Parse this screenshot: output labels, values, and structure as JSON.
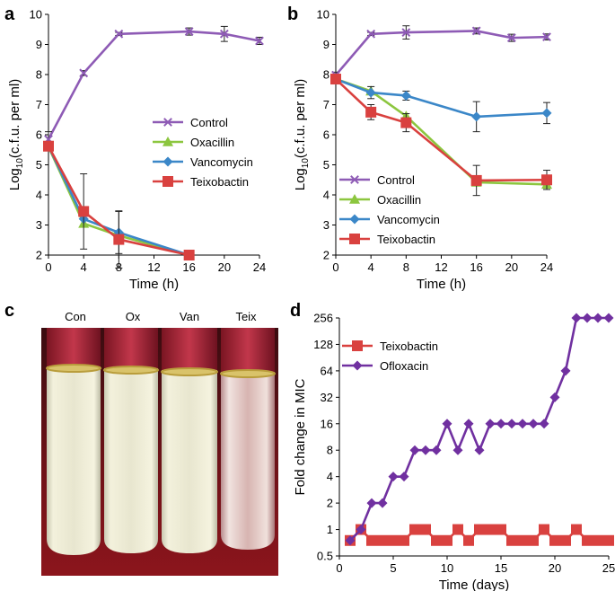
{
  "panel_labels": {
    "a": "a",
    "b": "b",
    "c": "c",
    "d": "d"
  },
  "colors": {
    "Control": "#8E5BB5",
    "Oxacillin": "#8CC63F",
    "Vancomycin": "#3B87C8",
    "Teixobactin": "#D9413F",
    "Ofloxacin": "#7030A0",
    "axis": "#000000"
  },
  "chart_data": [
    {
      "panel": "a",
      "type": "line",
      "xlabel": "Time (h)",
      "ylabel": "Log10(c.f.u. per ml)",
      "ylabel_main": "Log",
      "ylabel_sub": "10",
      "ylabel_rest": "(c.f.u. per ml)",
      "xlim": [
        0,
        24
      ],
      "ylim": [
        2,
        10
      ],
      "xticks": [
        "0",
        "4",
        "8",
        "12",
        "16",
        "20",
        "24"
      ],
      "yticks": [
        "2",
        "3",
        "4",
        "5",
        "6",
        "7",
        "8",
        "9",
        "10"
      ],
      "grid": false,
      "legend": "right",
      "series": [
        {
          "name": "Control",
          "marker": "x",
          "x": [
            0,
            4,
            8,
            16,
            20,
            24
          ],
          "y": [
            5.85,
            8.05,
            9.35,
            9.43,
            9.35,
            9.12
          ],
          "err": [
            0.25,
            0.08,
            0.05,
            0.12,
            0.25,
            0.12
          ]
        },
        {
          "name": "Oxacillin",
          "marker": "triangle",
          "x": [
            0,
            4,
            8,
            16
          ],
          "y": [
            5.6,
            3.05,
            2.65,
            2.0
          ],
          "err": [
            0,
            0,
            0,
            0
          ]
        },
        {
          "name": "Vancomycin",
          "marker": "diamond",
          "x": [
            0,
            4,
            8,
            16
          ],
          "y": [
            5.62,
            3.2,
            2.75,
            2.0
          ],
          "err": [
            0,
            0,
            0.7,
            0
          ]
        },
        {
          "name": "Teixobactin",
          "marker": "square",
          "x": [
            0,
            4,
            8,
            16
          ],
          "y": [
            5.62,
            3.45,
            2.52,
            2.0
          ],
          "err": [
            0,
            1.25,
            0.95,
            0
          ]
        }
      ]
    },
    {
      "panel": "b",
      "type": "line",
      "xlabel": "Time (h)",
      "ylabel": "Log10(c.f.u. per ml)",
      "ylabel_main": "Log",
      "ylabel_sub": "10",
      "ylabel_rest": "(c.f.u. per ml)",
      "xlim": [
        0,
        24
      ],
      "ylim": [
        2,
        10
      ],
      "xticks": [
        "0",
        "4",
        "8",
        "12",
        "16",
        "20",
        "24"
      ],
      "yticks": [
        "2",
        "3",
        "4",
        "5",
        "6",
        "7",
        "8",
        "9",
        "10"
      ],
      "grid": false,
      "legend": "bottom-left",
      "series": [
        {
          "name": "Control",
          "marker": "x",
          "x": [
            0,
            4,
            8,
            16,
            20,
            24
          ],
          "y": [
            7.98,
            9.35,
            9.4,
            9.45,
            9.22,
            9.25
          ],
          "err": [
            0.1,
            0.05,
            0.22,
            0.1,
            0.12,
            0.1
          ]
        },
        {
          "name": "Oxacillin",
          "marker": "triangle",
          "x": [
            0,
            4,
            8,
            16,
            24
          ],
          "y": [
            7.85,
            7.45,
            6.62,
            4.42,
            4.35
          ],
          "err": [
            0,
            0,
            0,
            0,
            0
          ]
        },
        {
          "name": "Vancomycin",
          "marker": "diamond",
          "x": [
            0,
            4,
            8,
            16,
            24
          ],
          "y": [
            7.85,
            7.4,
            7.3,
            6.6,
            6.72
          ],
          "err": [
            0.1,
            0.2,
            0.15,
            0.5,
            0.35
          ]
        },
        {
          "name": "Teixobactin",
          "marker": "square",
          "x": [
            0,
            4,
            8,
            16,
            24
          ],
          "y": [
            7.85,
            6.75,
            6.4,
            4.48,
            4.5
          ],
          "err": [
            0,
            0.25,
            0.3,
            0.5,
            0.32
          ]
        }
      ]
    },
    {
      "panel": "d",
      "type": "line",
      "xlabel": "Time (days)",
      "ylabel": "Fold change in MIC",
      "xlim": [
        0,
        25
      ],
      "ylim": [
        0.5,
        256
      ],
      "yscale": "log2",
      "xticks": [
        "0",
        "5",
        "10",
        "15",
        "20",
        "25"
      ],
      "yticks": [
        "0.5",
        "1",
        "2",
        "4",
        "8",
        "16",
        "32",
        "64",
        "128",
        "256"
      ],
      "grid": false,
      "legend": "top-left",
      "series": [
        {
          "name": "Teixobactin",
          "marker": "square",
          "x": [
            1,
            2,
            3,
            4,
            5,
            6,
            7,
            8,
            9,
            10,
            11,
            12,
            13,
            14,
            15,
            16,
            17,
            18,
            19,
            20,
            21,
            22,
            23,
            24,
            25
          ],
          "y": [
            0.75,
            1,
            0.75,
            0.75,
            0.75,
            0.75,
            1,
            1,
            0.75,
            0.75,
            1,
            0.75,
            1,
            1,
            1,
            0.75,
            0.75,
            0.75,
            1,
            0.75,
            0.75,
            1,
            0.75,
            0.75,
            0.75
          ]
        },
        {
          "name": "Ofloxacin",
          "marker": "diamond",
          "x": [
            1,
            2,
            3,
            4,
            5,
            6,
            7,
            8,
            9,
            10,
            11,
            12,
            13,
            14,
            15,
            16,
            17,
            18,
            19,
            20,
            21,
            22,
            23,
            24,
            25
          ],
          "y": [
            0.75,
            1,
            2,
            2,
            4,
            4,
            8,
            8,
            8,
            16,
            8,
            16,
            8,
            16,
            16,
            16,
            16,
            16,
            16,
            32,
            64,
            256,
            256,
            256,
            256
          ]
        }
      ]
    }
  ],
  "photo": {
    "labels": [
      "Con",
      "Ox",
      "Van",
      "Teix"
    ]
  }
}
